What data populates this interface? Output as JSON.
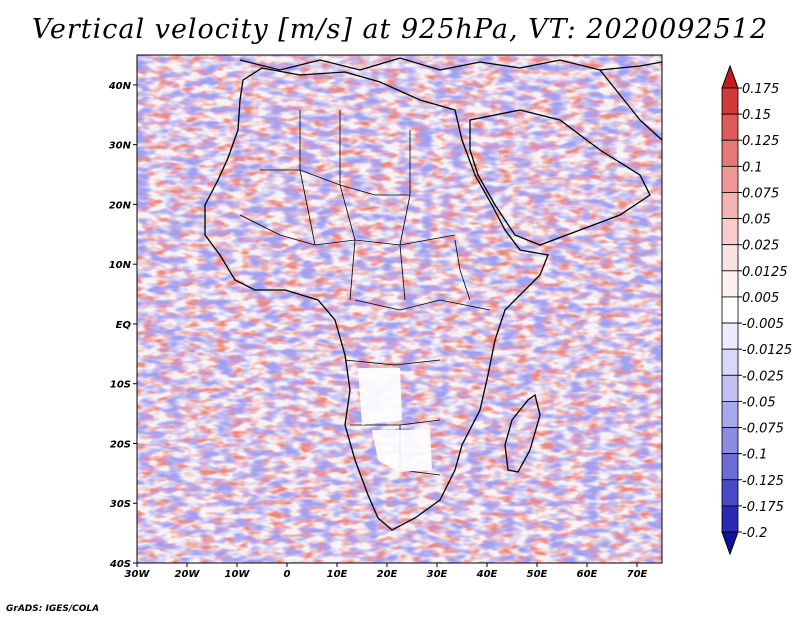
{
  "title": "Vertical velocity [m/s] at 925hPa, VT: 2020092512",
  "credit": "GrADS: IGES/COLA",
  "map": {
    "lon_range": [
      -30,
      75
    ],
    "lat_range": [
      -40,
      45
    ],
    "lon_ticks": [
      "30W",
      "20W",
      "10W",
      "0",
      "10E",
      "20E",
      "30E",
      "40E",
      "50E",
      "60E",
      "70E"
    ],
    "lat_ticks": [
      "40N",
      "30N",
      "20N",
      "10N",
      "EQ",
      "10S",
      "20S",
      "30S",
      "40S"
    ],
    "colors": {
      "positive": "#d73027",
      "negative": "#4a4ae0",
      "land_fill": "#ffffff",
      "coast": "#000000"
    }
  },
  "colorbar": {
    "levels": [
      "0.175",
      "0.15",
      "0.125",
      "0.1",
      "0.075",
      "0.05",
      "0.025",
      "0.0125",
      "0.005",
      "-0.005",
      "-0.0125",
      "-0.025",
      "-0.05",
      "-0.075",
      "-0.1",
      "-0.125",
      "-0.175",
      "-0.2"
    ],
    "colors": [
      "#c01e1e",
      "#d23a3a",
      "#df5a5a",
      "#e87878",
      "#ef9898",
      "#f4b4b4",
      "#f8cccc",
      "#fbe2e2",
      "#fdf2f2",
      "#ffffff",
      "#ececfc",
      "#d8d8f8",
      "#c2c2f2",
      "#a8a8ec",
      "#8c8ce4",
      "#6c6cd8",
      "#4a4ac8",
      "#2a2ab4",
      "#1010a0"
    ]
  }
}
